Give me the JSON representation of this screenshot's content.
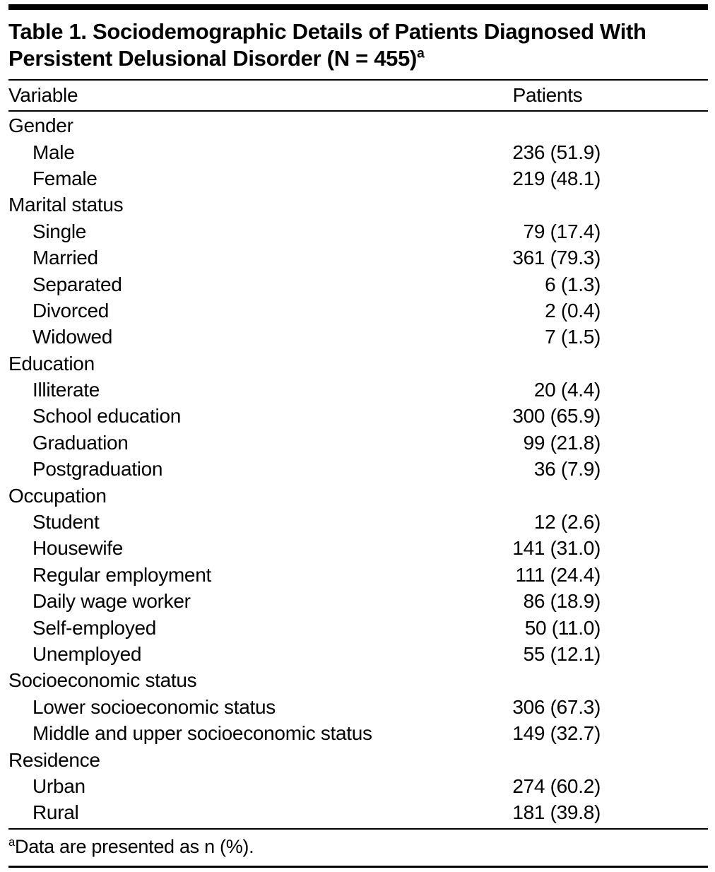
{
  "table": {
    "title": "Table 1. Sociodemographic Details of Patients Diagnosed With Persistent Delusional Disorder (N = 455)",
    "title_sup": "a",
    "columns": [
      "Variable",
      "Patients"
    ],
    "sections": [
      {
        "label": "Gender",
        "rows": [
          {
            "label": "Male",
            "value": "236 (51.9)"
          },
          {
            "label": "Female",
            "value": "219 (48.1)"
          }
        ]
      },
      {
        "label": "Marital status",
        "rows": [
          {
            "label": "Single",
            "value": "79 (17.4)"
          },
          {
            "label": "Married",
            "value": "361 (79.3)"
          },
          {
            "label": "Separated",
            "value": "6 (1.3)"
          },
          {
            "label": "Divorced",
            "value": "2 (0.4)"
          },
          {
            "label": "Widowed",
            "value": "7 (1.5)"
          }
        ]
      },
      {
        "label": "Education",
        "rows": [
          {
            "label": "Illiterate",
            "value": "20 (4.4)"
          },
          {
            "label": "School education",
            "value": "300 (65.9)"
          },
          {
            "label": "Graduation",
            "value": "99 (21.8)"
          },
          {
            "label": "Postgraduation",
            "value": "36 (7.9)"
          }
        ]
      },
      {
        "label": "Occupation",
        "rows": [
          {
            "label": "Student",
            "value": "12 (2.6)"
          },
          {
            "label": "Housewife",
            "value": "141 (31.0)"
          },
          {
            "label": "Regular employment",
            "value": "111 (24.4)"
          },
          {
            "label": "Daily wage worker",
            "value": "86 (18.9)"
          },
          {
            "label": "Self-employed",
            "value": "50 (11.0)"
          },
          {
            "label": "Unemployed",
            "value": "55 (12.1)"
          }
        ]
      },
      {
        "label": "Socioeconomic status",
        "rows": [
          {
            "label": "Lower socioeconomic status",
            "value": "306 (67.3)"
          },
          {
            "label": "Middle and upper socioeconomic status",
            "value": "149 (32.7)"
          }
        ]
      },
      {
        "label": "Residence",
        "rows": [
          {
            "label": "Urban",
            "value": "274 (60.2)"
          },
          {
            "label": "Rural",
            "value": "181 (39.8)"
          }
        ]
      }
    ],
    "footnote_sup": "a",
    "footnote": "Data are presented as n (%)."
  }
}
